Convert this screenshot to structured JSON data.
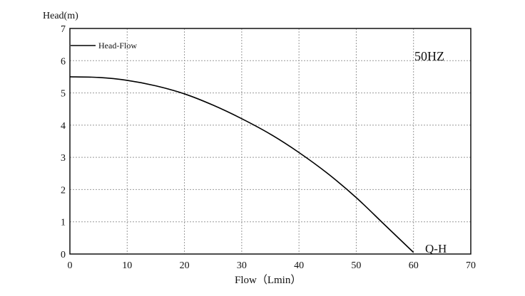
{
  "chart_data": {
    "type": "line",
    "title": "",
    "xlabel": "Flow（Lmin）",
    "ylabel": "Head(m)",
    "xlim": [
      0,
      70
    ],
    "ylim": [
      0,
      7
    ],
    "xticks": [
      0,
      10,
      20,
      30,
      40,
      50,
      60,
      70
    ],
    "yticks": [
      0,
      1,
      2,
      3,
      4,
      5,
      6,
      7
    ],
    "grid": true,
    "legend_position": "top-left",
    "annotations": [
      "50HZ",
      "Q-H"
    ],
    "series": [
      {
        "name": "Head-Flow",
        "color": "#000000",
        "x": [
          0,
          5,
          10,
          15,
          20,
          25,
          30,
          35,
          40,
          45,
          50,
          55,
          60
        ],
        "y": [
          5.5,
          5.48,
          5.39,
          5.22,
          4.97,
          4.62,
          4.2,
          3.72,
          3.15,
          2.5,
          1.75,
          0.9,
          0.05
        ]
      }
    ]
  }
}
